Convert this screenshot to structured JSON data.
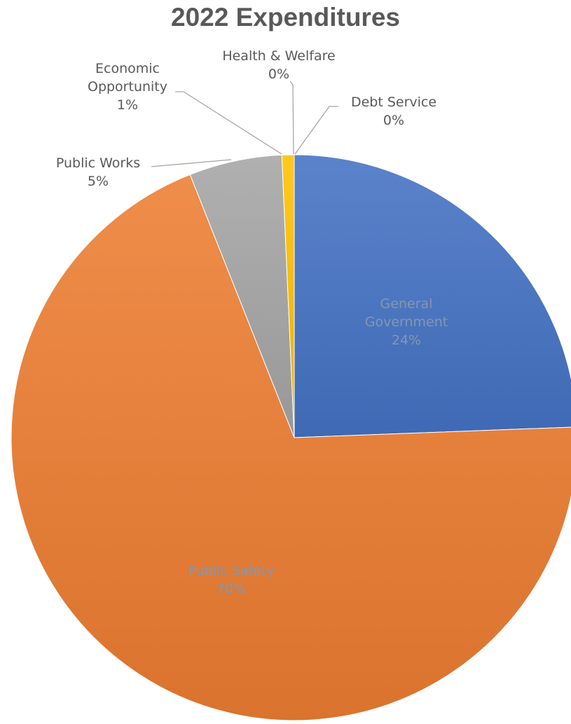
{
  "chart_data": {
    "type": "pie",
    "title": "2022 Expenditures",
    "slices": [
      {
        "label": [
          "General",
          "Government"
        ],
        "percent_label": "24%",
        "value": 24.4,
        "color": "#4472C4"
      },
      {
        "label": [
          "Public Safety"
        ],
        "percent_label": "70%",
        "value": 69.6,
        "color": "#ED7D31"
      },
      {
        "label": [
          "Public Works"
        ],
        "percent_label": "5%",
        "value": 5.3,
        "color": "#A5A5A5"
      },
      {
        "label": [
          "Economic",
          "Opportunity"
        ],
        "percent_label": "1%",
        "value": 0.7,
        "color": "#FFC000"
      },
      {
        "label": [
          "Health & Welfare"
        ],
        "percent_label": "0%",
        "value": 0.0,
        "color": "#5B9BD5"
      },
      {
        "label": [
          "Debt Service"
        ],
        "percent_label": "0%",
        "value": 0.0,
        "color": "#70AD47"
      }
    ]
  }
}
